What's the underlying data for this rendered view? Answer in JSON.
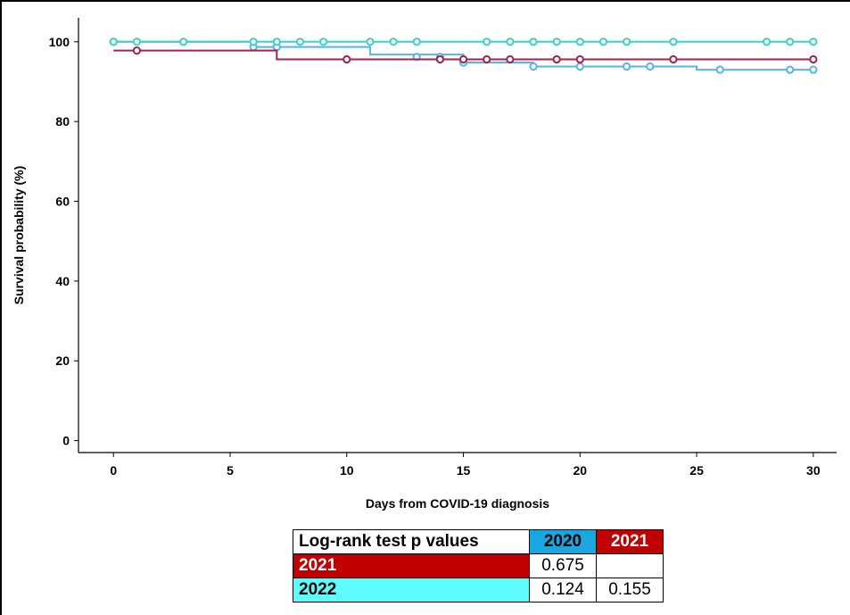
{
  "chart_data": {
    "type": "line",
    "subtype": "kaplan-meier",
    "title": "",
    "xlabel": "Days from COVID-19 diagnosis",
    "ylabel": "Survival probability (%)",
    "xlim": [
      -1.5,
      31
    ],
    "ylim": [
      -3,
      106
    ],
    "xticks": [
      0,
      5,
      10,
      15,
      20,
      25,
      30
    ],
    "yticks": [
      0,
      20,
      40,
      60,
      80,
      100
    ],
    "grid": false,
    "series": [
      {
        "key": "2020",
        "color": "#58b3e8",
        "steps": [
          [
            0,
            100
          ],
          [
            6,
            98.7
          ],
          [
            11,
            96.8
          ],
          [
            15,
            94.8
          ],
          [
            18,
            93.8
          ],
          [
            25,
            93.0
          ],
          [
            30,
            93.0
          ]
        ],
        "censored": [
          [
            0,
            100
          ],
          [
            6,
            98.7
          ],
          [
            7,
            98.7
          ],
          [
            13,
            96.2
          ],
          [
            14,
            96.2
          ],
          [
            15,
            94.8
          ],
          [
            18,
            93.8
          ],
          [
            20,
            93.8
          ],
          [
            22,
            93.8
          ],
          [
            23,
            93.8
          ],
          [
            26,
            93.0
          ],
          [
            29,
            93.0
          ],
          [
            30,
            93.0
          ]
        ]
      },
      {
        "key": "2021",
        "color": "#a3224e",
        "steps": [
          [
            0,
            97.8
          ],
          [
            7,
            95.6
          ],
          [
            30,
            95.6
          ]
        ],
        "censored": [
          [
            1,
            97.8
          ],
          [
            10,
            95.6
          ],
          [
            14,
            95.6
          ],
          [
            15,
            95.6
          ],
          [
            16,
            95.6
          ],
          [
            17,
            95.6
          ],
          [
            19,
            95.6
          ],
          [
            20,
            95.6
          ],
          [
            24,
            95.6
          ],
          [
            30,
            95.6
          ]
        ]
      },
      {
        "key": "2022",
        "color": "#40cfc6",
        "steps": [
          [
            0,
            100
          ],
          [
            30,
            100
          ]
        ],
        "censored": [
          [
            0,
            100
          ],
          [
            1,
            100
          ],
          [
            3,
            100
          ],
          [
            6,
            100
          ],
          [
            7,
            100
          ],
          [
            8,
            100
          ],
          [
            9,
            100
          ],
          [
            11,
            100
          ],
          [
            12,
            100
          ],
          [
            13,
            100
          ],
          [
            16,
            100
          ],
          [
            17,
            100
          ],
          [
            18,
            100
          ],
          [
            19,
            100
          ],
          [
            20,
            100
          ],
          [
            21,
            100
          ],
          [
            22,
            100
          ],
          [
            24,
            100
          ],
          [
            28,
            100
          ],
          [
            29,
            100
          ],
          [
            30,
            100
          ]
        ]
      }
    ]
  },
  "table": {
    "header": "Log-rank test p values",
    "col_2020": "2020",
    "col_2021": "2021",
    "row_2021_label": "2021",
    "row_2021_vs_2020": "0.675",
    "row_2021_vs_2021": "",
    "row_2022_label": "2022",
    "row_2022_vs_2020": "0.124",
    "row_2022_vs_2021": "0.155",
    "colors": {
      "col_2020_bg": "#1aa7e0",
      "col_2021_bg": "#c00000",
      "row_2021_bg": "#c00000",
      "row_2022_bg": "#5ffcff"
    }
  }
}
